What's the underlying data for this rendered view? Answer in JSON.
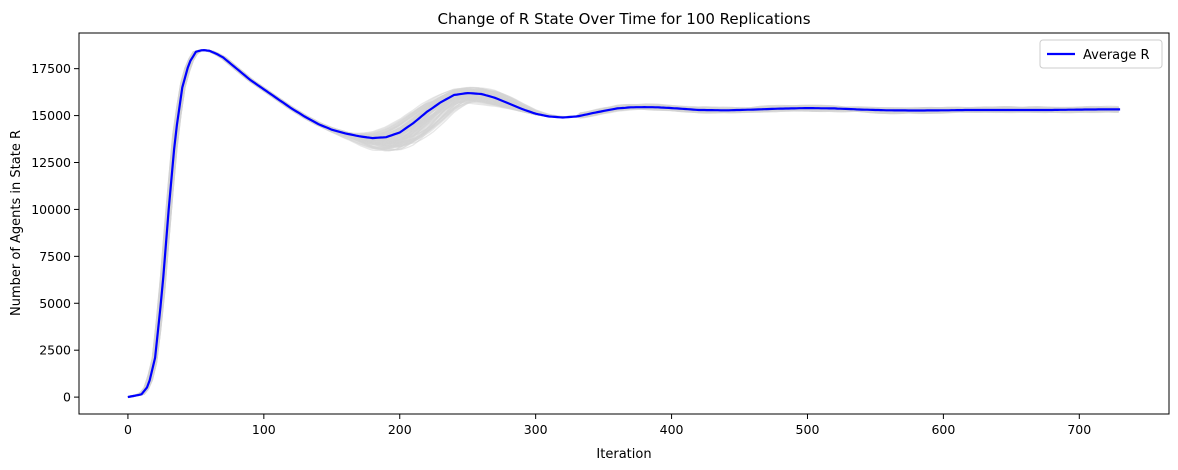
{
  "chart_data": {
    "type": "line",
    "title": "Change of R State Over Time for 100 Replications",
    "xlabel": "Iteration",
    "ylabel": "Number of Agents in State R",
    "xlim": [
      -36,
      766
    ],
    "ylim": [
      -900,
      19400
    ],
    "xticks": [
      0,
      100,
      200,
      300,
      400,
      500,
      600,
      700
    ],
    "yticks": [
      0,
      2500,
      5000,
      7500,
      10000,
      12500,
      15000,
      17500
    ],
    "grid": false,
    "legend_position": "top-right",
    "series": [
      {
        "name": "Average R",
        "color": "#0000ff",
        "x": [
          0,
          10,
          15,
          20,
          25,
          30,
          35,
          40,
          45,
          50,
          55,
          60,
          65,
          70,
          80,
          90,
          100,
          110,
          120,
          130,
          140,
          150,
          160,
          170,
          180,
          190,
          200,
          210,
          220,
          230,
          240,
          250,
          260,
          270,
          280,
          290,
          300,
          310,
          320,
          330,
          340,
          350,
          360,
          370,
          380,
          390,
          400,
          420,
          440,
          460,
          480,
          500,
          520,
          540,
          560,
          580,
          600,
          620,
          640,
          660,
          680,
          700,
          720,
          730
        ],
        "y": [
          0,
          150,
          600,
          2100,
          5500,
          10000,
          14000,
          16500,
          17800,
          18400,
          18500,
          18450,
          18300,
          18100,
          17500,
          16900,
          16400,
          15900,
          15400,
          14950,
          14550,
          14250,
          14050,
          13900,
          13800,
          13850,
          14100,
          14600,
          15200,
          15700,
          16100,
          16200,
          16150,
          15950,
          15650,
          15350,
          15100,
          14950,
          14900,
          14950,
          15100,
          15250,
          15380,
          15440,
          15450,
          15440,
          15400,
          15300,
          15280,
          15320,
          15370,
          15400,
          15380,
          15320,
          15280,
          15270,
          15280,
          15300,
          15300,
          15300,
          15300,
          15320,
          15330,
          15330
        ]
      }
    ],
    "background_series": {
      "count": 100,
      "color": "#d3d3d3"
    }
  }
}
